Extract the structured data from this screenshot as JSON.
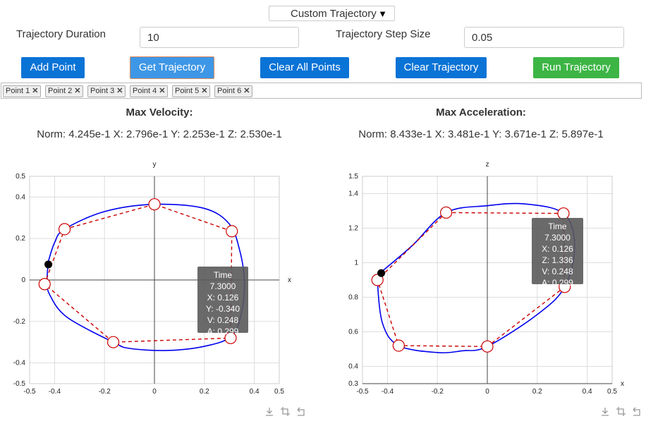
{
  "dropdown": {
    "selected": "Custom Trajectory",
    "arrow": "▼"
  },
  "duration": {
    "label": "Trajectory Duration",
    "value": "10"
  },
  "step": {
    "label": "Trajectory Step Size",
    "value": "0.05"
  },
  "buttons": {
    "add_point": "Add Point",
    "get_trajectory": "Get Trajectory",
    "clear_all_points": "Clear All Points",
    "clear_trajectory": "Clear Trajectory",
    "run_trajectory": "Run Trajectory"
  },
  "tags": [
    {
      "label": "Point 1"
    },
    {
      "label": "Point 2"
    },
    {
      "label": "Point 3"
    },
    {
      "label": "Point 4"
    },
    {
      "label": "Point 5"
    },
    {
      "label": "Point 6"
    }
  ],
  "tag_remove": "✕",
  "velocity": {
    "title": "Max Velocity:",
    "text": "Norm: 4.245e-1 X: 2.796e-1 Y: 2.253e-1 Z: 2.530e-1"
  },
  "acceleration": {
    "title": "Max Acceleration:",
    "text": "Norm: 8.433e-1 X: 3.481e-1 Y: 3.671e-1 Z: 5.897e-1"
  },
  "colors": {
    "path": "#0000ee",
    "control": "#cc0000",
    "current": "#000000",
    "blue_button": "#0a73d6",
    "green_button": "#3db545"
  },
  "icons": [
    "download-icon",
    "crop-icon",
    "reset-icon"
  ],
  "tooltip_left": {
    "time": "Time 7.3000",
    "l1": "X: 0.126",
    "l2": "Y: -0.340",
    "l3": "V: 0.248",
    "l4": "A: 0.299"
  },
  "tooltip_right": {
    "time": "Time 7.3000",
    "l1": "X: 0.126",
    "l2": "Z: 1.336",
    "l3": "V: 0.248",
    "l4": "A: 0.299"
  },
  "chart_data": [
    {
      "type": "line",
      "xlabel": "x",
      "ylabel": "y",
      "xlim": [
        -0.5,
        0.5
      ],
      "ylim": [
        -0.5,
        0.5
      ],
      "xticks": [
        "-0.5",
        "-0.4",
        "-0.2",
        "0",
        "0.2",
        "0.4",
        "0.5"
      ],
      "xtick_vals": [
        -0.5,
        -0.4,
        -0.2,
        0,
        0.2,
        0.4,
        0.5
      ],
      "yticks": [
        "0.5",
        "0.4",
        "0.2",
        "0",
        "-0.2",
        "-0.4",
        "-0.5"
      ],
      "ytick_vals": [
        0.5,
        0.4,
        0.2,
        0,
        -0.2,
        -0.4,
        -0.5
      ],
      "control_points": [
        [
          -0.36,
          0.245
        ],
        [
          0,
          0.365
        ],
        [
          0.31,
          0.235
        ],
        [
          0.305,
          -0.28
        ],
        [
          -0.165,
          -0.3
        ],
        [
          -0.44,
          -0.02
        ]
      ],
      "path": [
        [
          -0.425,
          0.09
        ],
        [
          -0.4,
          0.18
        ],
        [
          -0.36,
          0.245
        ],
        [
          -0.2,
          0.33
        ],
        [
          0,
          0.365
        ],
        [
          0.2,
          0.345
        ],
        [
          0.3,
          0.27
        ],
        [
          0.34,
          0.15
        ],
        [
          0.36,
          0.0
        ],
        [
          0.35,
          -0.15
        ],
        [
          0.31,
          -0.27
        ],
        [
          0.2,
          -0.32
        ],
        [
          0.05,
          -0.34
        ],
        [
          -0.1,
          -0.33
        ],
        [
          -0.165,
          -0.3
        ],
        [
          -0.35,
          -0.18
        ],
        [
          -0.42,
          -0.07
        ],
        [
          -0.43,
          0.0
        ],
        [
          -0.425,
          0.09
        ]
      ],
      "current_point": [
        -0.425,
        0.075
      ]
    },
    {
      "type": "line",
      "xlabel": "x",
      "ylabel": "z",
      "xlim": [
        -0.5,
        0.5
      ],
      "ylim": [
        0.3,
        1.5
      ],
      "xticks": [
        "-0.5",
        "-0.4",
        "-0.2",
        "0",
        "0.2",
        "0.4",
        "0.5"
      ],
      "xtick_vals": [
        -0.5,
        -0.4,
        -0.2,
        0,
        0.2,
        0.4,
        0.5
      ],
      "yticks": [
        "1.5",
        "1.4",
        "1.2",
        "1",
        "0.8",
        "0.6",
        "0.4",
        "0.3"
      ],
      "ytick_vals": [
        1.5,
        1.4,
        1.2,
        1,
        0.8,
        0.6,
        0.4,
        0.3
      ],
      "control_points": [
        [
          -0.165,
          1.29
        ],
        [
          0.305,
          1.285
        ],
        [
          0.31,
          0.86
        ],
        [
          0,
          0.515
        ],
        [
          -0.355,
          0.52
        ],
        [
          -0.44,
          0.9
        ]
      ],
      "path": [
        [
          -0.43,
          0.94
        ],
        [
          -0.3,
          1.1
        ],
        [
          -0.165,
          1.29
        ],
        [
          0,
          1.33
        ],
        [
          0.15,
          1.34
        ],
        [
          0.305,
          1.285
        ],
        [
          0.35,
          1.1
        ],
        [
          0.31,
          0.86
        ],
        [
          0.2,
          0.7
        ],
        [
          0,
          0.515
        ],
        [
          -0.1,
          0.49
        ],
        [
          -0.2,
          0.48
        ],
        [
          -0.355,
          0.52
        ],
        [
          -0.42,
          0.65
        ],
        [
          -0.44,
          0.9
        ],
        [
          -0.43,
          0.94
        ]
      ],
      "current_point": [
        -0.425,
        0.94
      ]
    }
  ]
}
